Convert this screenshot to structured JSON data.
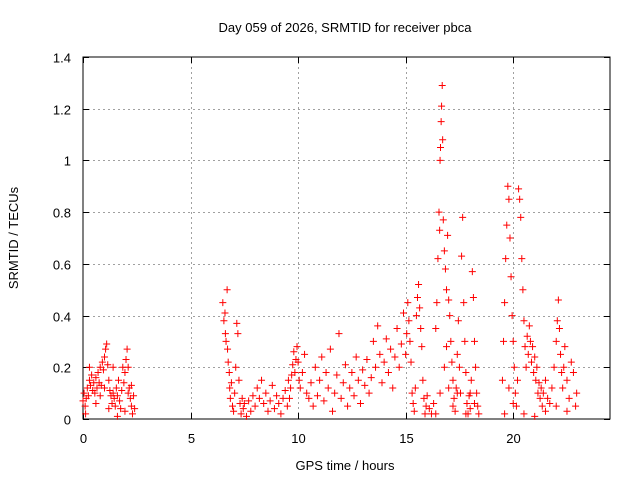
{
  "chart_data": {
    "type": "scatter",
    "title": "Day 059 of 2026, SRMTID for receiver pbca",
    "xlabel": "GPS time / hours",
    "ylabel": "SRMTID / TECUs",
    "xlim": [
      0,
      24.5
    ],
    "ylim": [
      0,
      1.4
    ],
    "grid": true,
    "marker": "+",
    "color": "#ff0000",
    "xticks": [
      0,
      5,
      10,
      15,
      20
    ],
    "xtick_labels": [
      "0",
      "5",
      "10",
      "15",
      "20"
    ],
    "yticks": [
      0,
      0.2,
      0.4,
      0.6,
      0.8,
      1,
      1.2,
      1.4
    ],
    "ytick_labels": [
      "0",
      "0.2",
      "0.4",
      "0.6",
      "0.8",
      "1",
      "1.2",
      "1.4"
    ],
    "series": [
      {
        "name": "pbca",
        "points": [
          [
            0.0,
            0.07
          ],
          [
            0.05,
            0.1
          ],
          [
            0.1,
            0.05
          ],
          [
            0.15,
            0.08
          ],
          [
            0.2,
            0.12
          ],
          [
            0.25,
            0.09
          ],
          [
            0.3,
            0.15
          ],
          [
            0.35,
            0.13
          ],
          [
            0.4,
            0.17
          ],
          [
            0.45,
            0.11
          ],
          [
            0.5,
            0.14
          ],
          [
            0.55,
            0.1
          ],
          [
            0.6,
            0.16
          ],
          [
            0.65,
            0.12
          ],
          [
            0.7,
            0.18
          ],
          [
            0.75,
            0.14
          ],
          [
            0.8,
            0.2
          ],
          [
            0.85,
            0.13
          ],
          [
            0.9,
            0.22
          ],
          [
            0.95,
            0.19
          ],
          [
            1.0,
            0.24
          ],
          [
            1.05,
            0.27
          ],
          [
            1.1,
            0.29
          ],
          [
            1.15,
            0.21
          ],
          [
            1.2,
            0.15
          ],
          [
            1.25,
            0.11
          ],
          [
            1.3,
            0.09
          ],
          [
            1.35,
            0.06
          ],
          [
            1.4,
            0.1
          ],
          [
            1.45,
            0.08
          ],
          [
            1.5,
            0.05
          ],
          [
            1.55,
            0.12
          ],
          [
            1.6,
            0.09
          ],
          [
            1.65,
            0.15
          ],
          [
            1.7,
            0.07
          ],
          [
            1.75,
            0.04
          ],
          [
            1.8,
            0.11
          ],
          [
            1.85,
            0.2
          ],
          [
            1.9,
            0.14
          ],
          [
            1.95,
            0.18
          ],
          [
            2.0,
            0.23
          ],
          [
            2.05,
            0.27
          ],
          [
            2.1,
            0.2
          ],
          [
            2.15,
            0.12
          ],
          [
            2.2,
            0.08
          ],
          [
            2.25,
            0.05
          ],
          [
            2.3,
            0.02
          ],
          [
            2.35,
            0.09
          ],
          [
            2.4,
            0.04
          ],
          [
            0.12,
            0.02
          ],
          [
            0.6,
            0.06
          ],
          [
            1.0,
            0.12
          ],
          [
            1.2,
            0.04
          ],
          [
            1.6,
            0.01
          ],
          [
            2.1,
            0.1
          ],
          [
            0.3,
            0.2
          ],
          [
            0.8,
            0.09
          ],
          [
            1.4,
            0.2
          ],
          [
            1.95,
            0.03
          ],
          [
            2.25,
            0.13
          ],
          [
            6.5,
            0.45
          ],
          [
            6.55,
            0.38
          ],
          [
            6.6,
            0.41
          ],
          [
            6.62,
            0.33
          ],
          [
            6.65,
            0.3
          ],
          [
            6.7,
            0.5
          ],
          [
            6.72,
            0.27
          ],
          [
            6.75,
            0.22
          ],
          [
            6.8,
            0.18
          ],
          [
            6.82,
            0.12
          ],
          [
            6.85,
            0.08
          ],
          [
            6.9,
            0.14
          ],
          [
            6.95,
            0.05
          ],
          [
            7.0,
            0.03
          ],
          [
            7.05,
            0.1
          ],
          [
            7.1,
            0.2
          ],
          [
            7.15,
            0.37
          ],
          [
            7.2,
            0.33
          ],
          [
            7.25,
            0.15
          ],
          [
            7.3,
            0.06
          ],
          [
            7.35,
            0.02
          ],
          [
            7.4,
            0.08
          ],
          [
            7.45,
            0.04
          ],
          [
            7.5,
            0.06
          ],
          [
            7.6,
            0.01
          ],
          [
            7.7,
            0.07
          ],
          [
            7.8,
            0.03
          ],
          [
            7.9,
            0.09
          ],
          [
            8.0,
            0.05
          ],
          [
            8.1,
            0.12
          ],
          [
            8.2,
            0.08
          ],
          [
            8.3,
            0.15
          ],
          [
            8.4,
            0.06
          ],
          [
            8.5,
            0.1
          ],
          [
            8.6,
            0.03
          ],
          [
            8.7,
            0.07
          ],
          [
            8.8,
            0.13
          ],
          [
            8.9,
            0.04
          ],
          [
            9.0,
            0.09
          ],
          [
            9.1,
            0.06
          ],
          [
            9.2,
            0.02
          ],
          [
            9.3,
            0.08
          ],
          [
            9.4,
            0.11
          ],
          [
            9.5,
            0.05
          ],
          [
            9.55,
            0.15
          ],
          [
            9.6,
            0.08
          ],
          [
            9.65,
            0.12
          ],
          [
            9.7,
            0.17
          ],
          [
            9.75,
            0.21
          ],
          [
            9.8,
            0.26
          ],
          [
            9.85,
            0.18
          ],
          [
            9.9,
            0.23
          ],
          [
            9.95,
            0.28
          ],
          [
            10.0,
            0.22
          ],
          [
            10.05,
            0.15
          ],
          [
            10.1,
            0.12
          ],
          [
            10.2,
            0.18
          ],
          [
            10.3,
            0.25
          ],
          [
            10.4,
            0.1
          ],
          [
            10.5,
            0.08
          ],
          [
            10.6,
            0.14
          ],
          [
            10.7,
            0.05
          ],
          [
            10.8,
            0.2
          ],
          [
            10.9,
            0.09
          ],
          [
            11.0,
            0.15
          ],
          [
            11.1,
            0.24
          ],
          [
            11.2,
            0.07
          ],
          [
            11.3,
            0.18
          ],
          [
            11.4,
            0.12
          ],
          [
            11.5,
            0.27
          ],
          [
            11.6,
            0.03
          ],
          [
            11.7,
            0.1
          ],
          [
            11.8,
            0.17
          ],
          [
            11.9,
            0.33
          ],
          [
            12.0,
            0.08
          ],
          [
            12.1,
            0.14
          ],
          [
            12.2,
            0.21
          ],
          [
            12.3,
            0.05
          ],
          [
            12.4,
            0.12
          ],
          [
            12.5,
            0.18
          ],
          [
            12.6,
            0.09
          ],
          [
            12.7,
            0.24
          ],
          [
            12.8,
            0.15
          ],
          [
            12.9,
            0.06
          ],
          [
            13.0,
            0.19
          ],
          [
            13.1,
            0.13
          ],
          [
            13.2,
            0.23
          ],
          [
            13.3,
            0.1
          ],
          [
            13.4,
            0.16
          ],
          [
            13.5,
            0.3
          ],
          [
            13.6,
            0.2
          ],
          [
            13.7,
            0.36
          ],
          [
            13.8,
            0.25
          ],
          [
            13.9,
            0.14
          ],
          [
            14.0,
            0.22
          ],
          [
            14.1,
            0.31
          ],
          [
            14.2,
            0.18
          ],
          [
            14.3,
            0.27
          ],
          [
            14.4,
            0.12
          ],
          [
            14.5,
            0.24
          ],
          [
            14.6,
            0.35
          ],
          [
            14.7,
            0.2
          ],
          [
            14.8,
            0.29
          ],
          [
            14.9,
            0.41
          ],
          [
            15.0,
            0.25
          ],
          [
            15.05,
            0.33
          ],
          [
            15.1,
            0.45
          ],
          [
            15.15,
            0.38
          ],
          [
            15.2,
            0.3
          ],
          [
            15.25,
            0.22
          ],
          [
            15.3,
            0.1
          ],
          [
            15.35,
            0.06
          ],
          [
            15.4,
            0.03
          ],
          [
            15.45,
            0.12
          ],
          [
            15.5,
            0.4
          ],
          [
            15.55,
            0.47
          ],
          [
            15.6,
            0.52
          ],
          [
            15.65,
            0.43
          ],
          [
            15.7,
            0.35
          ],
          [
            15.75,
            0.28
          ],
          [
            15.8,
            0.15
          ],
          [
            15.85,
            0.08
          ],
          [
            15.9,
            0.02
          ],
          [
            15.95,
            0.05
          ],
          [
            16.0,
            0.09
          ],
          [
            16.1,
            0.04
          ],
          [
            16.2,
            0.02
          ],
          [
            16.3,
            0.06
          ],
          [
            16.4,
            0.35
          ],
          [
            16.45,
            0.45
          ],
          [
            16.5,
            0.62
          ],
          [
            16.55,
            0.8
          ],
          [
            16.58,
            0.73
          ],
          [
            16.6,
            1.0
          ],
          [
            16.62,
            1.05
          ],
          [
            16.65,
            1.15
          ],
          [
            16.67,
            1.21
          ],
          [
            16.7,
            1.29
          ],
          [
            16.72,
            1.08
          ],
          [
            16.75,
            0.77
          ],
          [
            16.8,
            0.65
          ],
          [
            16.85,
            0.58
          ],
          [
            16.9,
            0.5
          ],
          [
            16.95,
            0.71
          ],
          [
            17.0,
            0.46
          ],
          [
            17.05,
            0.4
          ],
          [
            17.1,
            0.3
          ],
          [
            17.15,
            0.22
          ],
          [
            17.2,
            0.15
          ],
          [
            17.25,
            0.08
          ],
          [
            17.3,
            0.03
          ],
          [
            17.35,
            0.12
          ],
          [
            17.4,
            0.25
          ],
          [
            17.45,
            0.38
          ],
          [
            17.5,
            0.2
          ],
          [
            17.55,
            0.1
          ],
          [
            17.6,
            0.63
          ],
          [
            17.65,
            0.78
          ],
          [
            17.7,
            0.45
          ],
          [
            17.75,
            0.3
          ],
          [
            17.8,
            0.18
          ],
          [
            17.85,
            0.06
          ],
          [
            17.9,
            0.02
          ],
          [
            17.95,
            0.09
          ],
          [
            18.0,
            0.04
          ],
          [
            18.05,
            0.15
          ],
          [
            18.1,
            0.57
          ],
          [
            18.15,
            0.47
          ],
          [
            18.2,
            0.3
          ],
          [
            18.25,
            0.2
          ],
          [
            18.3,
            0.1
          ],
          [
            18.35,
            0.05
          ],
          [
            18.4,
            0.02
          ],
          [
            19.5,
            0.15
          ],
          [
            19.55,
            0.3
          ],
          [
            19.6,
            0.45
          ],
          [
            19.65,
            0.62
          ],
          [
            19.7,
            0.75
          ],
          [
            19.75,
            0.9
          ],
          [
            19.8,
            0.85
          ],
          [
            19.85,
            0.7
          ],
          [
            19.9,
            0.55
          ],
          [
            19.95,
            0.4
          ],
          [
            20.0,
            0.3
          ],
          [
            20.05,
            0.2
          ],
          [
            20.1,
            0.1
          ],
          [
            20.15,
            0.05
          ],
          [
            20.2,
            0.15
          ],
          [
            20.25,
            0.89
          ],
          [
            20.3,
            0.85
          ],
          [
            20.35,
            0.78
          ],
          [
            20.4,
            0.62
          ],
          [
            20.45,
            0.5
          ],
          [
            20.5,
            0.38
          ],
          [
            20.55,
            0.28
          ],
          [
            20.6,
            0.2
          ],
          [
            20.65,
            0.32
          ],
          [
            20.7,
            0.25
          ],
          [
            20.75,
            0.36
          ],
          [
            20.8,
            0.3
          ],
          [
            20.85,
            0.22
          ],
          [
            20.9,
            0.28
          ],
          [
            20.95,
            0.18
          ],
          [
            21.0,
            0.24
          ],
          [
            21.05,
            0.15
          ],
          [
            21.1,
            0.2
          ],
          [
            21.15,
            0.1
          ],
          [
            21.2,
            0.14
          ],
          [
            21.25,
            0.08
          ],
          [
            21.3,
            0.12
          ],
          [
            21.35,
            0.05
          ],
          [
            21.4,
            0.1
          ],
          [
            21.5,
            0.03
          ],
          [
            21.6,
            0.08
          ],
          [
            21.7,
            0.06
          ],
          [
            21.8,
            0.12
          ],
          [
            21.9,
            0.2
          ],
          [
            22.0,
            0.3
          ],
          [
            22.05,
            0.38
          ],
          [
            22.1,
            0.46
          ],
          [
            22.15,
            0.35
          ],
          [
            22.2,
            0.25
          ],
          [
            22.25,
            0.18
          ],
          [
            22.3,
            0.12
          ],
          [
            22.35,
            0.2
          ],
          [
            22.4,
            0.28
          ],
          [
            22.5,
            0.15
          ],
          [
            22.6,
            0.08
          ],
          [
            22.7,
            0.22
          ],
          [
            22.8,
            0.18
          ],
          [
            22.9,
            0.05
          ],
          [
            22.95,
            0.1
          ],
          [
            19.6,
            0.02
          ],
          [
            19.8,
            0.12
          ],
          [
            20.0,
            0.06
          ],
          [
            20.5,
            0.02
          ],
          [
            21.0,
            0.01
          ],
          [
            21.5,
            0.15
          ],
          [
            22.0,
            0.05
          ],
          [
            22.5,
            0.03
          ],
          [
            16.6,
            0.1
          ],
          [
            16.8,
            0.2
          ],
          [
            17.0,
            0.12
          ],
          [
            17.2,
            0.05
          ],
          [
            17.4,
            0.1
          ],
          [
            17.8,
            0.02
          ],
          [
            18.0,
            0.1
          ],
          [
            18.2,
            0.06
          ],
          [
            16.4,
            0.02
          ],
          [
            16.9,
            0.28
          ]
        ]
      }
    ]
  }
}
